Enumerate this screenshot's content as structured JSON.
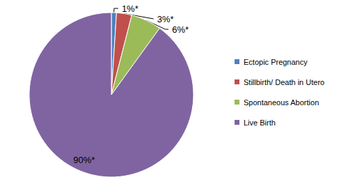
{
  "chart_data": {
    "type": "pie",
    "categories": [
      "Ectopic Pregnancy",
      "Stillbirth/ Death in Utero",
      "Spontaneous Abortion",
      "Live Birth"
    ],
    "values": [
      1,
      3,
      6,
      90
    ],
    "value_labels": [
      "1%*",
      "3%*",
      "6%*",
      "90%*"
    ],
    "colors": [
      "#4f81bd",
      "#c0504d",
      "#9bbb59",
      "#8064a2"
    ],
    "data_labels": true,
    "legend": "right"
  }
}
